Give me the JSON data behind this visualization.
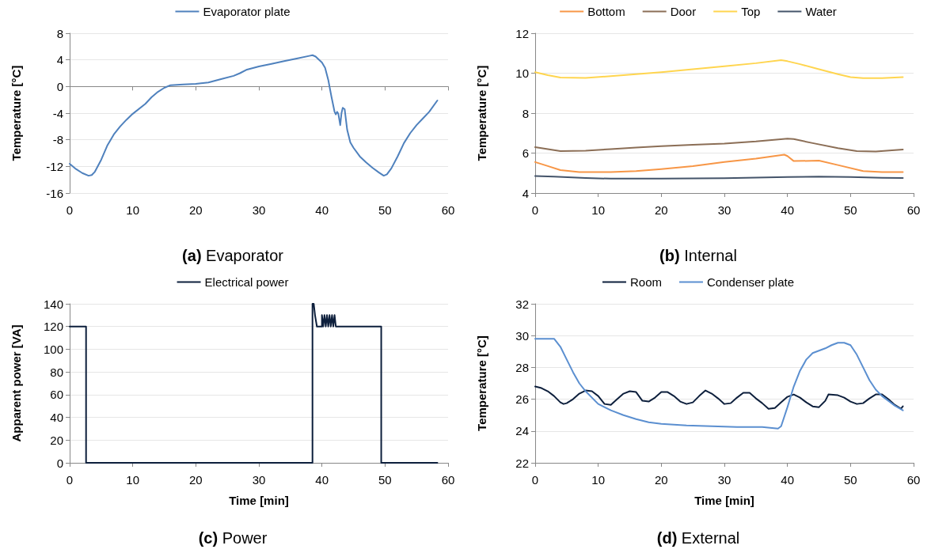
{
  "chart_data": [
    {
      "type": "line",
      "title": "(a) Evaporator",
      "ylabel": "Temperature [°C]",
      "xlim": [
        0,
        60
      ],
      "xticks": [
        0,
        10,
        20,
        30,
        40,
        50,
        60
      ],
      "ylim": [
        -16,
        8
      ],
      "yticks": [
        -16,
        -12,
        -8,
        -4,
        0,
        4,
        8
      ],
      "grid": "y",
      "legend": "top",
      "marker": "none",
      "line_style": "solid",
      "tick_labels": true,
      "series": [
        {
          "name": "Evaporator plate",
          "color": "#4f81bd",
          "x": [
            0,
            1,
            2,
            3,
            3.5,
            4,
            5,
            6,
            7,
            8,
            9,
            10,
            12,
            13,
            14,
            15,
            16,
            18,
            20,
            22,
            24,
            26,
            27,
            28,
            30,
            32,
            34,
            36,
            38,
            38.5,
            39,
            40,
            40.5,
            41,
            41.5,
            42,
            42.2,
            42.4,
            42.6,
            42.9,
            43.1,
            43.3,
            43.6,
            44,
            44.5,
            45,
            46,
            47,
            48,
            49,
            49.8,
            50.3,
            51,
            52,
            53,
            54,
            55,
            56,
            57,
            58.3
          ],
          "values": [
            -11.6,
            -12.4,
            -13,
            -13.4,
            -13.3,
            -12.8,
            -11,
            -8.8,
            -7.2,
            -6,
            -5,
            -4.1,
            -2.6,
            -1.6,
            -0.8,
            -0.2,
            0.2,
            0.3,
            0.4,
            0.6,
            1.1,
            1.6,
            2,
            2.5,
            3,
            3.4,
            3.8,
            4.2,
            4.6,
            4.7,
            4.5,
            3.6,
            2.8,
            1,
            -1.5,
            -3.8,
            -4.2,
            -3.8,
            -4.1,
            -5.8,
            -4,
            -3.2,
            -3.4,
            -6.5,
            -8.4,
            -9.2,
            -10.5,
            -11.4,
            -12.2,
            -12.9,
            -13.4,
            -13.2,
            -12.3,
            -10.5,
            -8.5,
            -7,
            -5.8,
            -4.8,
            -3.8,
            -2.1
          ]
        }
      ]
    },
    {
      "type": "line",
      "title": "(b) Internal",
      "ylabel": "Temperature [°C]",
      "xlim": [
        0,
        60
      ],
      "xticks": [
        0,
        10,
        20,
        30,
        40,
        50,
        60
      ],
      "ylim": [
        4,
        12
      ],
      "yticks": [
        4,
        6,
        8,
        10,
        12
      ],
      "grid": "y",
      "legend": "top",
      "marker": "none",
      "line_style": "solid",
      "series": [
        {
          "name": "Bottom",
          "color": "#f79646",
          "x": [
            0,
            2,
            4,
            7,
            12,
            16,
            20,
            25,
            30,
            35,
            39.5,
            40,
            41,
            45,
            48,
            52,
            55,
            58.3
          ],
          "values": [
            5.55,
            5.35,
            5.15,
            5.05,
            5.05,
            5.1,
            5.2,
            5.35,
            5.55,
            5.72,
            5.92,
            5.85,
            5.6,
            5.62,
            5.4,
            5.1,
            5.05,
            5.05
          ]
        },
        {
          "name": "Door",
          "color": "#8b6e56",
          "x": [
            0,
            2,
            4,
            8,
            12,
            16,
            20,
            25,
            30,
            35,
            40,
            41,
            44,
            48,
            51,
            54,
            58.3
          ],
          "values": [
            6.3,
            6.2,
            6.1,
            6.12,
            6.2,
            6.28,
            6.35,
            6.42,
            6.48,
            6.58,
            6.72,
            6.7,
            6.5,
            6.25,
            6.1,
            6.08,
            6.18
          ]
        },
        {
          "name": "Top",
          "color": "#ffd54f",
          "x": [
            0,
            2,
            4,
            8,
            12,
            16,
            20,
            25,
            30,
            35,
            39,
            40,
            42,
            45,
            48,
            50,
            52,
            55,
            58.3
          ],
          "values": [
            10.05,
            9.9,
            9.78,
            9.76,
            9.85,
            9.95,
            10.05,
            10.2,
            10.35,
            10.5,
            10.65,
            10.6,
            10.45,
            10.2,
            9.95,
            9.8,
            9.75,
            9.75,
            9.8
          ]
        },
        {
          "name": "Water",
          "color": "#44546a",
          "x": [
            0,
            3,
            8,
            12,
            20,
            30,
            40,
            45,
            50,
            55,
            58.3
          ],
          "values": [
            4.85,
            4.82,
            4.75,
            4.72,
            4.72,
            4.74,
            4.8,
            4.82,
            4.8,
            4.76,
            4.75
          ]
        }
      ]
    },
    {
      "type": "line",
      "title": "(c) Power",
      "xlabel": "Time [min]",
      "ylabel": "Apparent power [VA]",
      "xlim": [
        0,
        60
      ],
      "xticks": [
        0,
        10,
        20,
        30,
        40,
        50,
        60
      ],
      "ylim": [
        0,
        140
      ],
      "yticks": [
        0,
        20,
        40,
        60,
        80,
        100,
        120,
        140
      ],
      "grid": "y",
      "legend": "top",
      "marker": "none",
      "line_style": "solid",
      "series": [
        {
          "name": "Electrical power",
          "color": "#0d1f3c",
          "x": [
            0,
            2.6,
            2.6,
            38.5,
            38.5,
            38.7,
            38.9,
            39.2,
            40,
            40,
            40.2,
            40.4,
            40.6,
            40.8,
            41,
            41.2,
            41.4,
            41.6,
            41.8,
            42,
            42.2,
            49.4,
            49.4,
            58.3
          ],
          "values": [
            120,
            120,
            0,
            0,
            140,
            140,
            130,
            120,
            120,
            130,
            120,
            130,
            120,
            130,
            120,
            130,
            120,
            130,
            120,
            130,
            120,
            120,
            0,
            0
          ]
        }
      ]
    },
    {
      "type": "line",
      "title": "(d) External",
      "xlabel": "Time [min]",
      "ylabel": "Temperature [°C]",
      "xlim": [
        0,
        60
      ],
      "xticks": [
        0,
        10,
        20,
        30,
        40,
        50,
        60
      ],
      "ylim": [
        22,
        32
      ],
      "yticks": [
        22,
        24,
        26,
        28,
        30,
        32
      ],
      "grid": "y",
      "legend": "top",
      "marker": "none",
      "line_style": "solid",
      "series": [
        {
          "name": "Room",
          "color": "#0d1f3c",
          "x": [
            0,
            1,
            2,
            3,
            4,
            4.5,
            5,
            6,
            7,
            8,
            9,
            10,
            11,
            12,
            13,
            14,
            15,
            16,
            17,
            18,
            19,
            20,
            21,
            22,
            23,
            24,
            25,
            26,
            27,
            28,
            29,
            30,
            31,
            32,
            33,
            34,
            35,
            36,
            37,
            38,
            39,
            40,
            41,
            42,
            43,
            44,
            45,
            46,
            46.5,
            48,
            49,
            50,
            51,
            52,
            53,
            54,
            55,
            56,
            57,
            58,
            58.3
          ],
          "values": [
            26.8,
            26.7,
            26.5,
            26.2,
            25.8,
            25.7,
            25.75,
            26,
            26.35,
            26.55,
            26.5,
            26.2,
            25.7,
            25.65,
            26,
            26.35,
            26.5,
            26.45,
            25.9,
            25.85,
            26.1,
            26.45,
            26.45,
            26.2,
            25.85,
            25.7,
            25.8,
            26.2,
            26.55,
            26.35,
            26.05,
            25.7,
            25.75,
            26.1,
            26.4,
            26.4,
            26.05,
            25.75,
            25.4,
            25.45,
            25.8,
            26.15,
            26.3,
            26.1,
            25.8,
            25.55,
            25.5,
            25.9,
            26.3,
            26.25,
            26.1,
            25.85,
            25.7,
            25.75,
            26.05,
            26.3,
            26.3,
            26,
            25.65,
            25.4,
            25.55
          ]
        },
        {
          "name": "Condenser plate",
          "color": "#5b8fd0",
          "x": [
            0,
            2,
            3,
            4,
            5,
            6,
            7,
            8,
            9,
            10,
            12,
            14,
            16,
            18,
            20,
            24,
            28,
            32,
            36,
            38.5,
            39,
            40,
            41,
            42,
            43,
            44,
            45,
            46,
            47,
            48,
            49,
            50,
            51,
            52,
            53,
            54,
            55,
            56,
            57,
            58.3
          ],
          "values": [
            29.8,
            29.8,
            29.8,
            29.3,
            28.5,
            27.7,
            27,
            26.5,
            26.1,
            25.7,
            25.3,
            25,
            24.75,
            24.55,
            24.45,
            24.35,
            24.3,
            24.25,
            24.25,
            24.15,
            24.3,
            25.5,
            26.8,
            27.8,
            28.5,
            28.9,
            29.05,
            29.2,
            29.4,
            29.55,
            29.55,
            29.4,
            28.8,
            28,
            27.2,
            26.6,
            26.2,
            25.9,
            25.6,
            25.3
          ]
        }
      ]
    }
  ]
}
